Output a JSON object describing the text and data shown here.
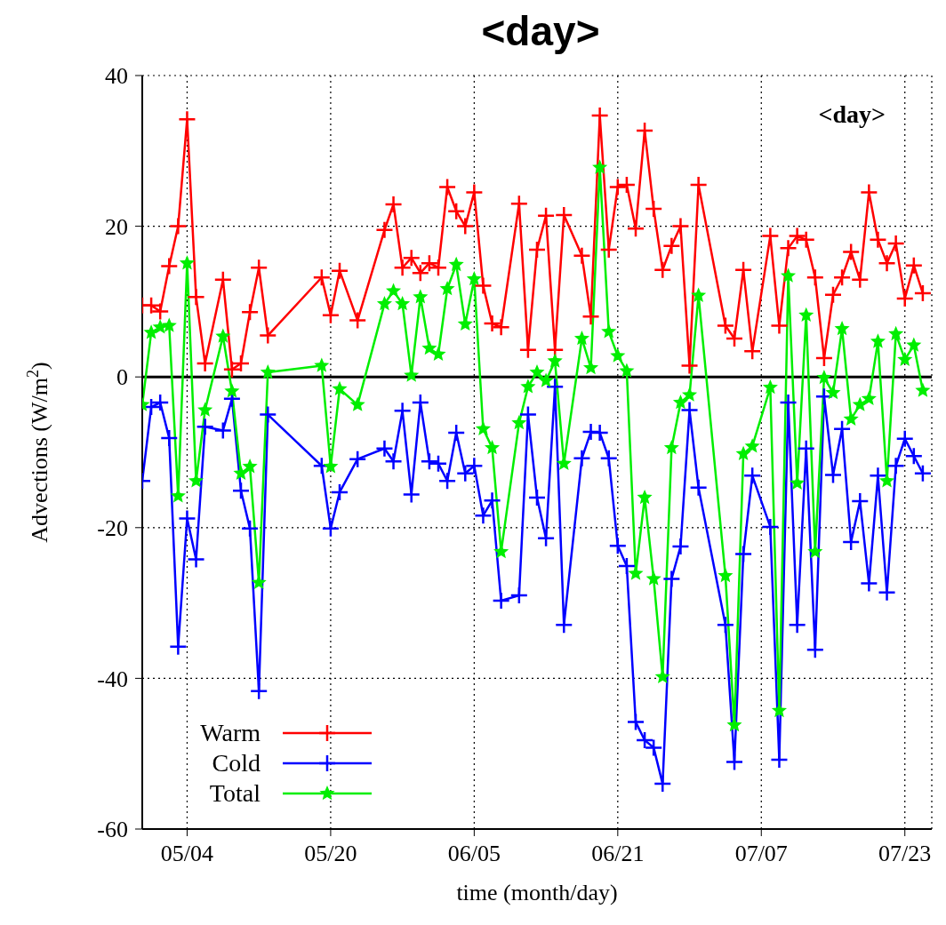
{
  "chart_data": {
    "type": "line",
    "title": "<day>",
    "xlabel": "time (month/day)",
    "ylabel": "Advections (W/m$^{2}$)",
    "annotations": [
      "<day>"
    ],
    "x": [
      "--04-29",
      "--04-30",
      "--05-01",
      "--05-02",
      "--05-03",
      "--05-04",
      "--05-05",
      "--05-06",
      "--05-08",
      "--05-09",
      "--05-10",
      "--05-11",
      "--05-12",
      "--05-13",
      "--05-19",
      "--05-20",
      "--05-21",
      "--05-23",
      "--05-26",
      "--05-27",
      "--05-28",
      "--05-29",
      "--05-30",
      "--05-31",
      "--06-01",
      "--06-02",
      "--06-03",
      "--06-04",
      "--06-05",
      "--06-06",
      "--06-07",
      "--06-08",
      "--06-10",
      "--06-11",
      "--06-12",
      "--06-13",
      "--06-14",
      "--06-15",
      "--06-17",
      "--06-18",
      "--06-19",
      "--06-20",
      "--06-21",
      "--06-22",
      "--06-23",
      "--06-24",
      "--06-25",
      "--06-26",
      "--06-27",
      "--06-28",
      "--06-29",
      "--06-30",
      "--07-03",
      "--07-04",
      "--07-05",
      "--07-06",
      "--07-08",
      "--07-09",
      "--07-10",
      "--07-11",
      "--07-12",
      "--07-13",
      "--07-14",
      "--07-15",
      "--07-16",
      "--07-17",
      "--07-18",
      "--07-19",
      "--07-20",
      "--07-21",
      "--07-22",
      "--07-23",
      "--07-24",
      "--07-25"
    ],
    "series": [
      {
        "name": "Warm",
        "color": "#ff0000",
        "marker": "cross",
        "values": [
          9.5,
          9.5,
          8.7,
          14.7,
          20,
          34.2,
          10.6,
          1.8,
          12.9,
          1,
          1.8,
          8.6,
          14.5,
          5.5,
          13.2,
          8.2,
          14.1,
          7.5,
          19.5,
          22.9,
          14.5,
          15.8,
          13.8,
          15.1,
          14.5,
          25.2,
          22,
          20,
          24.5,
          12.1,
          7.1,
          6.6,
          23,
          3.6,
          16.9,
          21.4,
          3.6,
          21.5,
          16.1,
          8,
          34.7,
          16.9,
          25.2,
          25.5,
          19.7,
          32.7,
          22.3,
          14.2,
          17.4,
          20,
          1.5,
          25.5,
          6.8,
          5.1,
          14.2,
          3.4,
          18.7,
          6.8,
          17.1,
          18.7,
          18.2,
          13.2,
          2.5,
          10.9,
          13.2,
          16.6,
          12.9,
          24.5,
          18.2,
          15.1,
          17.7,
          10.4,
          14.8,
          11.1
        ]
      },
      {
        "name": "Cold",
        "color": "#0000ff",
        "marker": "cross",
        "values": [
          -13.8,
          -4,
          -3.4,
          -8.1,
          -35.8,
          -18.8,
          -24.2,
          -6.6,
          -7.1,
          -2.9,
          -15.1,
          -20.1,
          -41.7,
          -5,
          -11.8,
          -20.1,
          -15.3,
          -10.9,
          -9.5,
          -11.2,
          -4.5,
          -15.6,
          -3.4,
          -11.2,
          -11.5,
          -13.8,
          -7.4,
          -12.8,
          -11.8,
          -18.4,
          -16.4,
          -29.7,
          -29,
          -5,
          -16,
          -21.4,
          -1.3,
          -32.9,
          -10.8,
          -7.3,
          -7.4,
          -10.8,
          -22.4,
          -25.1,
          -45.8,
          -48.2,
          -49.2,
          -54,
          -26.8,
          -22.5,
          -4.4,
          -14.7,
          -32.9,
          -51.1,
          -23.5,
          -13.1,
          -19.9,
          -50.8,
          -3.4,
          -32.9,
          -9.5,
          -36.2,
          -2.6,
          -13,
          -6.9,
          -21.9,
          -16.5,
          -27.4,
          -13.1,
          -28.6,
          -11.8,
          -8.2,
          -10.5,
          -12.8
        ]
      },
      {
        "name": "Total",
        "color": "#00ee00",
        "marker": "star",
        "values": [
          -3.7,
          5.9,
          6.6,
          6.8,
          -15.8,
          15.1,
          -13.8,
          -4.4,
          5.4,
          -1.9,
          -12.8,
          -11.9,
          -27.3,
          0.6,
          1.5,
          -11.9,
          -1.6,
          -3.7,
          9.7,
          11.4,
          9.7,
          0.2,
          10.6,
          3.8,
          3,
          11.7,
          14.9,
          7,
          13,
          -6.9,
          -9.4,
          -23.2,
          -6.1,
          -1.3,
          0.6,
          -0.5,
          2.1,
          -11.5,
          5.1,
          1.2,
          27.8,
          6,
          2.8,
          0.8,
          -26.1,
          -16,
          -26.8,
          -39.8,
          -9.4,
          -3.4,
          -2.4,
          10.8,
          -26.4,
          -46.2,
          -10.2,
          -9.2,
          -1.4,
          -44.3,
          13.4,
          -14.1,
          8.2,
          -23.2,
          -0.1,
          -2.1,
          6.4,
          -5.6,
          -3.7,
          -2.9,
          4.7,
          -13.8,
          5.7,
          2.3,
          4.2,
          -1.8
        ]
      }
    ],
    "xlim": [
      "--04-29",
      "--07-26"
    ],
    "xticks": [
      {
        "value": "--05-04",
        "label": "05/04"
      },
      {
        "value": "--05-20",
        "label": "05/20"
      },
      {
        "value": "--06-05",
        "label": "06/05"
      },
      {
        "value": "--06-21",
        "label": "06/21"
      },
      {
        "value": "--07-07",
        "label": "07/07"
      },
      {
        "value": "--07-23",
        "label": "07/23"
      }
    ],
    "ylim": [
      -60,
      40
    ],
    "yticks": [
      -60,
      -40,
      -20,
      0,
      20,
      40
    ],
    "ref_lines": [
      {
        "axis": "y",
        "value": 0,
        "color": "#000000"
      }
    ],
    "grid": true,
    "legend": "bottom left",
    "line_style": "solid"
  }
}
